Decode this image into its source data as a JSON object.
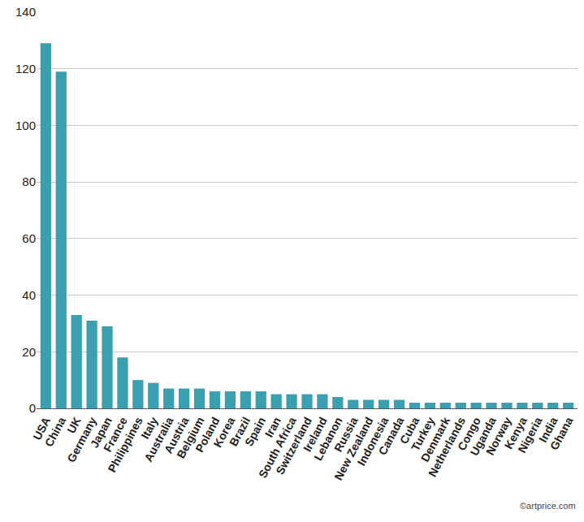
{
  "chart_data": {
    "type": "bar",
    "categories": [
      "USA",
      "China",
      "UK",
      "Germany",
      "Japan",
      "France",
      "Philippines",
      "Italy",
      "Australia",
      "Austria",
      "Belgium",
      "Poland",
      "Korea",
      "Brazil",
      "Spain",
      "Iran",
      "South Africa",
      "Switzerland",
      "Ireland",
      "Lebanon",
      "Russia",
      "New Zealand",
      "Indonesia",
      "Canada",
      "Cuba",
      "Turkey",
      "Denmark",
      "Netherlands",
      "Congo",
      "Uganda",
      "Norway",
      "Kenya",
      "Nigeria",
      "India",
      "Ghana"
    ],
    "values": [
      129,
      119,
      33,
      31,
      29,
      18,
      10,
      9,
      7,
      7,
      7,
      6,
      6,
      6,
      6,
      5,
      5,
      5,
      5,
      4,
      3,
      3,
      3,
      3,
      2,
      2,
      2,
      2,
      2,
      2,
      2,
      2,
      2,
      2,
      2
    ],
    "color": "#3a9fae",
    "ylim": [
      0,
      140
    ],
    "yticks": [
      0,
      20,
      40,
      60,
      80,
      100,
      120,
      140
    ],
    "grid": true,
    "annotation": "©artprice.com"
  }
}
